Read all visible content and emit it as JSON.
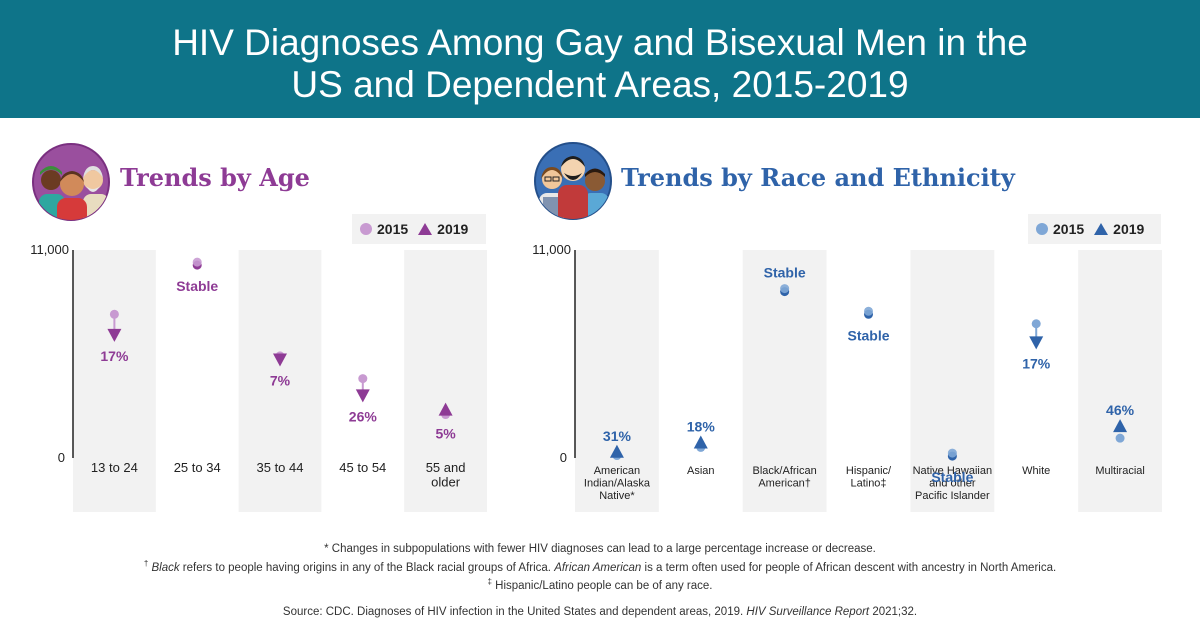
{
  "header": {
    "title_line1": "HIV Diagnoses Among Gay and Bisexual Men in the",
    "title_line2": "US and Dependent Areas, 2015-2019"
  },
  "age_section": {
    "title": "Trends by Age",
    "icon": "three-men-avatar-icon",
    "legend_2015": "2015",
    "legend_2019": "2019",
    "color_2015": "#c89ad1",
    "color_2019": "#8e3b95"
  },
  "race_section": {
    "title": "Trends by Race and Ethnicity",
    "icon": "three-men-avatar-icon",
    "legend_2015": "2015",
    "legend_2019": "2019",
    "color_2015": "#7fa7d6",
    "color_2019": "#2f63a9"
  },
  "chart_data": [
    {
      "type": "scatter",
      "title": "Trends by Age",
      "ylim": [
        0,
        11000
      ],
      "y_tick_labels": [
        "11,000",
        "0"
      ],
      "categories": [
        "13 to 24",
        "25 to 34",
        "35 to 44",
        "45 to 54",
        "55 and older"
      ],
      "series": [
        {
          "name": "2015",
          "values": [
            7600,
            10200,
            5400,
            4200,
            2300
          ]
        },
        {
          "name": "2019",
          "values": [
            6300,
            10200,
            5000,
            3100,
            2400
          ]
        }
      ],
      "annotations": [
        "17%",
        "Stable",
        "7%",
        "26%",
        "5%"
      ],
      "trend": [
        "decrease",
        "stable",
        "decrease",
        "decrease",
        "increase"
      ],
      "legend_position": "top-right",
      "grid": false
    },
    {
      "type": "scatter",
      "title": "Trends by Race and Ethnicity",
      "ylim": [
        0,
        11000
      ],
      "y_tick_labels": [
        "11,000",
        "0"
      ],
      "categories": [
        "American Indian/Alaska Native*",
        "Asian",
        "Black/African American†",
        "Hispanic/ Latino‡",
        "Native Hawaiian and other Pacific Islander",
        "White",
        "Multiracial"
      ],
      "series": [
        {
          "name": "2015",
          "values": [
            130,
            560,
            8800,
            7600,
            100,
            7100,
            1050
          ]
        },
        {
          "name": "2019",
          "values": [
            170,
            660,
            8800,
            7600,
            100,
            5900,
            1530
          ]
        }
      ],
      "annotations": [
        "31%",
        "18%",
        "Stable",
        "Stable",
        "Stable",
        "17%",
        "46%"
      ],
      "trend": [
        "increase",
        "increase",
        "stable",
        "stable",
        "stable",
        "decrease",
        "increase"
      ],
      "legend_position": "top-right",
      "grid": false
    }
  ],
  "footnotes": {
    "note1": "* Changes in subpopulations with fewer HIV diagnoses can lead to a large percentage increase or decrease.",
    "note2_mark": "†",
    "note2_em1": "Black",
    "note2_text1": " refers to people having origins in any of the Black racial groups of Africa. ",
    "note2_em2": "African American",
    "note2_text2": " is a term often used for people of African descent with ancestry in North America.",
    "note3_mark": "‡",
    "note3_text": " Hispanic/Latino people can be of any race.",
    "source_text": "Source: CDC. Diagnoses of HIV infection in the United States and dependent areas, 2019. ",
    "source_em": "HIV Surveillance Report",
    "source_tail": " 2021;32."
  }
}
